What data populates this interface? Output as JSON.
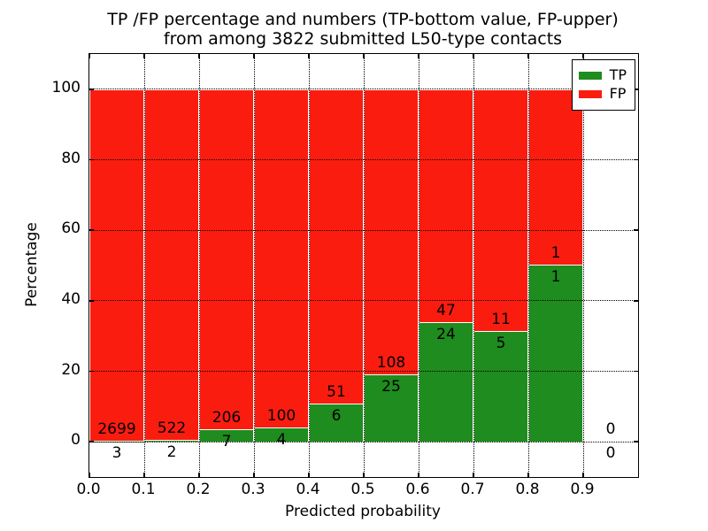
{
  "title": {
    "line1": "TP /FP percentage and numbers (TP-bottom value, FP-upper)",
    "line2": "from among 3822 submitted L50-type contacts"
  },
  "axes": {
    "xlabel": "Predicted probability",
    "ylabel": "Percentage"
  },
  "legend": {
    "position": "upper right",
    "entries": [
      {
        "label": "TP",
        "color": "#1e8c1e"
      },
      {
        "label": "FP",
        "color": "#fb1c10"
      }
    ]
  },
  "chart_data": {
    "type": "bar",
    "stacked": true,
    "title": "TP /FP percentage and numbers (TP-bottom value, FP-upper) from among 3822 submitted L50-type contacts",
    "xlabel": "Predicted probability",
    "ylabel": "Percentage",
    "total_submitted_contacts": 3822,
    "xlim": [
      0.0,
      1.0
    ],
    "ylim": [
      -10,
      110
    ],
    "x_tick_values": [
      0.0,
      0.1,
      0.2,
      0.3,
      0.4,
      0.5,
      0.6,
      0.7,
      0.8,
      0.9
    ],
    "x_tick_labels": [
      "0.0",
      "0.1",
      "0.2",
      "0.3",
      "0.4",
      "0.5",
      "0.6",
      "0.7",
      "0.8",
      "0.9"
    ],
    "y_ticks": [
      0,
      20,
      40,
      60,
      80,
      100
    ],
    "x_gridlines": [
      0.1,
      0.2,
      0.3,
      0.4,
      0.5,
      0.6,
      0.7,
      0.8,
      0.9
    ],
    "grid_style": "dotted",
    "legend_position": "upper right",
    "series_colors": {
      "tp": "#1e8c1e",
      "fp": "#fb1c10"
    },
    "series": [
      {
        "name": "TP",
        "values": [
          3,
          2,
          7,
          4,
          6,
          25,
          24,
          5,
          1,
          0
        ]
      },
      {
        "name": "FP",
        "values": [
          2699,
          522,
          206,
          100,
          51,
          108,
          47,
          11,
          1,
          0
        ]
      }
    ],
    "bins": [
      {
        "x0": 0.0,
        "x1": 0.1,
        "tp": 3,
        "fp": 2699
      },
      {
        "x0": 0.1,
        "x1": 0.2,
        "tp": 2,
        "fp": 522
      },
      {
        "x0": 0.2,
        "x1": 0.3,
        "tp": 7,
        "fp": 206
      },
      {
        "x0": 0.3,
        "x1": 0.4,
        "tp": 4,
        "fp": 100
      },
      {
        "x0": 0.4,
        "x1": 0.5,
        "tp": 6,
        "fp": 51
      },
      {
        "x0": 0.5,
        "x1": 0.6,
        "tp": 25,
        "fp": 108
      },
      {
        "x0": 0.6,
        "x1": 0.7,
        "tp": 24,
        "fp": 47
      },
      {
        "x0": 0.7,
        "x1": 0.8,
        "tp": 5,
        "fp": 11
      },
      {
        "x0": 0.8,
        "x1": 0.9,
        "tp": 1,
        "fp": 1
      },
      {
        "x0": 0.9,
        "x1": 1.0,
        "tp": 0,
        "fp": 0
      }
    ]
  }
}
